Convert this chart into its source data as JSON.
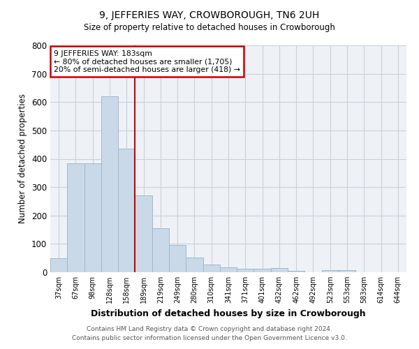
{
  "title": "9, JEFFERIES WAY, CROWBOROUGH, TN6 2UH",
  "subtitle": "Size of property relative to detached houses in Crowborough",
  "xlabel": "Distribution of detached houses by size in Crowborough",
  "ylabel": "Number of detached properties",
  "bin_labels": [
    "37sqm",
    "67sqm",
    "98sqm",
    "128sqm",
    "158sqm",
    "189sqm",
    "219sqm",
    "249sqm",
    "280sqm",
    "310sqm",
    "341sqm",
    "371sqm",
    "401sqm",
    "432sqm",
    "462sqm",
    "492sqm",
    "523sqm",
    "553sqm",
    "583sqm",
    "614sqm",
    "644sqm"
  ],
  "bar_heights": [
    50,
    385,
    385,
    620,
    435,
    270,
    155,
    95,
    52,
    28,
    18,
    12,
    12,
    15,
    6,
    0,
    7,
    7,
    0,
    0,
    0
  ],
  "bar_color": "#c9d9e8",
  "bar_edgecolor": "#a0b8cc",
  "grid_color": "#c8d0d8",
  "bg_color": "#eef2f7",
  "red_line_index": 5,
  "red_line_color": "#cc0000",
  "annotation_text": "9 JEFFERIES WAY: 183sqm\n← 80% of detached houses are smaller (1,705)\n20% of semi-detached houses are larger (418) →",
  "annotation_box_color": "#cc0000",
  "ylim": [
    0,
    800
  ],
  "yticks": [
    0,
    100,
    200,
    300,
    400,
    500,
    600,
    700,
    800
  ],
  "footer_line1": "Contains HM Land Registry data © Crown copyright and database right 2024.",
  "footer_line2": "Contains public sector information licensed under the Open Government Licence v3.0."
}
